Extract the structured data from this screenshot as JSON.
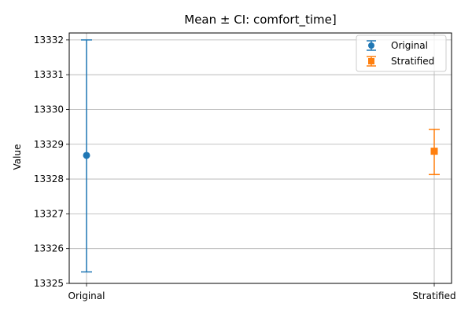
{
  "chart_data": {
    "type": "scatter",
    "title": "Mean ± CI: comfort_time]",
    "ylabel": "Value",
    "categories": [
      "Original",
      "Stratified"
    ],
    "ylim": [
      13325,
      13332.2
    ],
    "yticks": [
      13325,
      13326,
      13327,
      13328,
      13329,
      13330,
      13331,
      13332
    ],
    "grid": true,
    "legend_position": "top-right",
    "series": [
      {
        "name": "Original",
        "category": "Original",
        "mean": 13328.68,
        "ci_low": 13325.33,
        "ci_high": 13332.0,
        "color": "#1f77b4",
        "marker": "circle"
      },
      {
        "name": "Stratified",
        "category": "Stratified",
        "mean": 13328.8,
        "ci_low": 13328.13,
        "ci_high": 13329.43,
        "color": "#ff7f0e",
        "marker": "square"
      }
    ]
  }
}
